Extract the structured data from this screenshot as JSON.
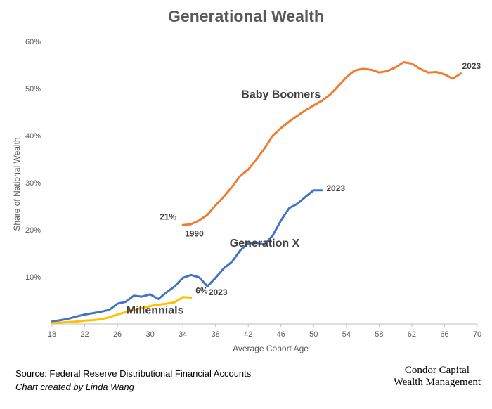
{
  "footer": {
    "source": "Source: Federal Reserve Distributional Financial Accounts",
    "credit": "Chart created by Linda Wang",
    "brand_line1": "Condor Capital",
    "brand_line2": "Wealth Management"
  },
  "chart_data": {
    "type": "line",
    "title": "Generational Wealth",
    "xlabel": "Average Cohort Age",
    "ylabel": "Share of National Wealth",
    "xlim": [
      18,
      70
    ],
    "ylim": [
      0,
      60
    ],
    "x_ticks": [
      "18",
      "22",
      "26",
      "30",
      "34",
      "38",
      "42",
      "46",
      "50",
      "54",
      "58",
      "62",
      "66",
      "70"
    ],
    "y_ticks": [
      "10%",
      "20%",
      "30%",
      "40%",
      "50%",
      "60%"
    ],
    "grid": false,
    "legend": "none",
    "series": [
      {
        "name": "Baby Boomers",
        "color": "#ED7D31",
        "x": [
          34,
          35,
          36,
          37,
          38,
          39,
          40,
          41,
          42,
          43,
          44,
          45,
          46,
          47,
          48,
          49,
          50,
          51,
          52,
          53,
          54,
          55,
          56,
          57,
          58,
          59,
          60,
          61,
          62,
          63,
          64,
          65,
          66,
          67,
          68
        ],
        "y": [
          21,
          21.2,
          22,
          23.2,
          25.2,
          27.0,
          29.1,
          31.4,
          32.8,
          35.0,
          37.3,
          40.0,
          41.6,
          43.0,
          44.2,
          45.4,
          46.4,
          47.4,
          48.7,
          50.5,
          52.4,
          53.8,
          54.2,
          54.0,
          53.4,
          53.7,
          54.5,
          55.6,
          55.3,
          54.2,
          53.4,
          53.5,
          53.0,
          52.1,
          53.2
        ]
      },
      {
        "name": "Generation X",
        "color": "#4472C4",
        "x": [
          18,
          19,
          20,
          21,
          22,
          23,
          24,
          25,
          26,
          27,
          28,
          29,
          30,
          31,
          32,
          33,
          34,
          35,
          36,
          37,
          38,
          39,
          40,
          41,
          42,
          43,
          44,
          45,
          46,
          47,
          48,
          49,
          50,
          51
        ],
        "y": [
          0.5,
          0.8,
          1.1,
          1.6,
          2.0,
          2.3,
          2.6,
          3.0,
          4.3,
          4.7,
          6.0,
          5.8,
          6.3,
          5.3,
          6.7,
          8.0,
          9.8,
          10.4,
          9.9,
          8.0,
          9.8,
          11.8,
          13.2,
          15.6,
          17.1,
          17.2,
          16.9,
          18.8,
          22.0,
          24.6,
          25.5,
          27.0,
          28.4,
          28.4
        ]
      },
      {
        "name": "Millennials",
        "color": "#FFC000",
        "x": [
          18,
          19,
          20,
          21,
          22,
          23,
          24,
          25,
          26,
          27,
          28,
          29,
          30,
          31,
          32,
          33,
          34,
          35
        ],
        "y": [
          0.2,
          0.3,
          0.4,
          0.5,
          0.7,
          0.8,
          1.0,
          1.4,
          2.0,
          2.5,
          3.0,
          3.4,
          3.8,
          4.1,
          4.3,
          4.6,
          5.7,
          5.6
        ]
      }
    ],
    "annotations": [
      {
        "text": "Baby Boomers",
        "x": 46,
        "y": 48,
        "size": 16
      },
      {
        "text": "Generation X",
        "x": 44,
        "y": 16.4,
        "size": 16
      },
      {
        "text": "Millennials",
        "x": 30.6,
        "y": 2.2,
        "size": 16
      },
      {
        "text": "2023",
        "x": 69.3,
        "y": 54.2,
        "size": 12
      },
      {
        "text": "2023",
        "x": 52.7,
        "y": 28.2,
        "size": 12
      },
      {
        "text": "2023",
        "x": 38.3,
        "y": 6.1,
        "size": 12
      },
      {
        "text": "21%",
        "x": 32.2,
        "y": 22.2,
        "size": 12
      },
      {
        "text": "1990",
        "x": 35.4,
        "y": 18.6,
        "size": 12
      },
      {
        "text": "6%",
        "x": 36.3,
        "y": 6.5,
        "size": 12
      }
    ]
  }
}
